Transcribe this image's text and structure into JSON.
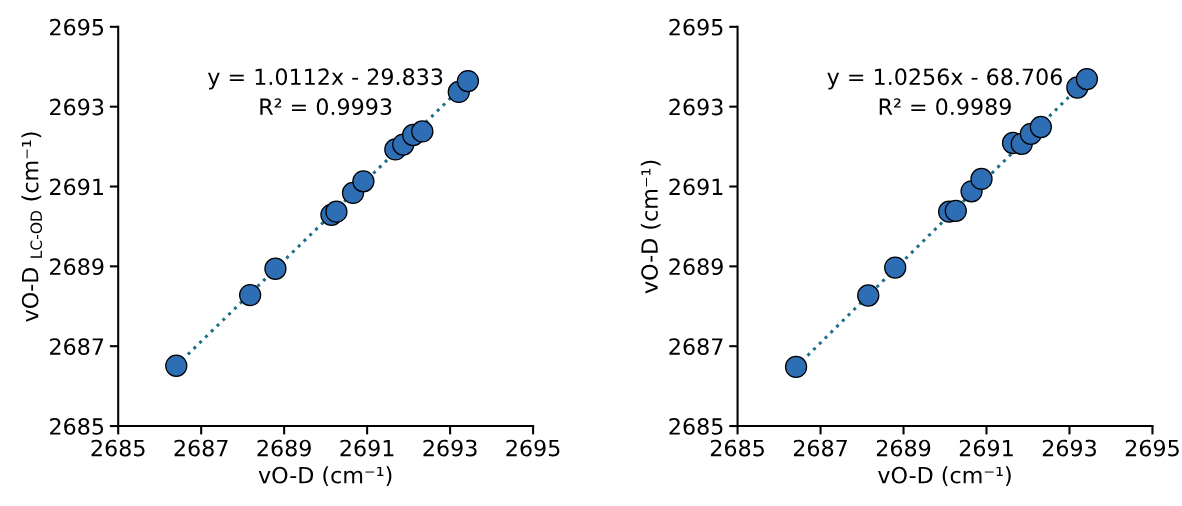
{
  "chart_data": [
    {
      "type": "scatter",
      "xlabel": "vO-D (cm⁻¹)",
      "ylabel": "vO-D $_{LC-OD}$ (cm⁻¹)",
      "annotations": [
        "y = 1.0112x - 29.833",
        "R² = 0.9993"
      ],
      "xlim": [
        2685,
        2695
      ],
      "xticks": [
        2685,
        2687,
        2689,
        2691,
        2693,
        2695
      ],
      "ylim": [
        2685,
        2695
      ],
      "yticks": [
        2685,
        2687,
        2689,
        2691,
        2693,
        2695
      ],
      "grid": false,
      "series": [
        {
          "type": "line",
          "color": "#1f6f8b",
          "line_style": "dotted",
          "marker": "none",
          "x": [
            2686.4,
            2693.43
          ],
          "values": [
            2686.51,
            2693.64
          ]
        },
        {
          "type": "scatter",
          "marker": "circle",
          "color": "#2e6eb5",
          "x": [
            2686.4,
            2688.18,
            2688.79,
            2690.14,
            2690.26,
            2690.66,
            2690.91,
            2691.68,
            2691.87,
            2692.11,
            2692.33,
            2693.21,
            2693.43
          ],
          "values": [
            2686.51,
            2688.28,
            2688.94,
            2690.29,
            2690.37,
            2690.84,
            2691.13,
            2691.93,
            2692.05,
            2692.29,
            2692.38,
            2693.37,
            2693.64
          ]
        }
      ]
    },
    {
      "type": "scatter",
      "xlabel": "vO-D (cm⁻¹)",
      "ylabel": "vO-D (cm⁻¹)",
      "annotations": [
        "y = 1.0256x - 68.706",
        "R² = 0.9989"
      ],
      "xlim": [
        2685,
        2695
      ],
      "xticks": [
        2685,
        2687,
        2689,
        2691,
        2693,
        2695
      ],
      "ylim": [
        2685,
        2695
      ],
      "yticks": [
        2685,
        2687,
        2689,
        2691,
        2693,
        2695
      ],
      "grid": false,
      "series": [
        {
          "type": "line",
          "color": "#1f6f8b",
          "line_style": "dotted",
          "marker": "none",
          "x": [
            2686.41,
            2693.42
          ],
          "values": [
            2686.48,
            2693.69
          ]
        },
        {
          "type": "scatter",
          "marker": "circle",
          "color": "#2e6eb5",
          "x": [
            2686.41,
            2688.15,
            2688.8,
            2690.1,
            2690.26,
            2690.64,
            2690.88,
            2691.64,
            2691.85,
            2692.07,
            2692.31,
            2693.19,
            2693.42
          ],
          "values": [
            2686.48,
            2688.27,
            2688.97,
            2690.37,
            2690.39,
            2690.88,
            2691.19,
            2692.09,
            2692.07,
            2692.32,
            2692.49,
            2693.48,
            2693.69
          ]
        }
      ]
    }
  ]
}
